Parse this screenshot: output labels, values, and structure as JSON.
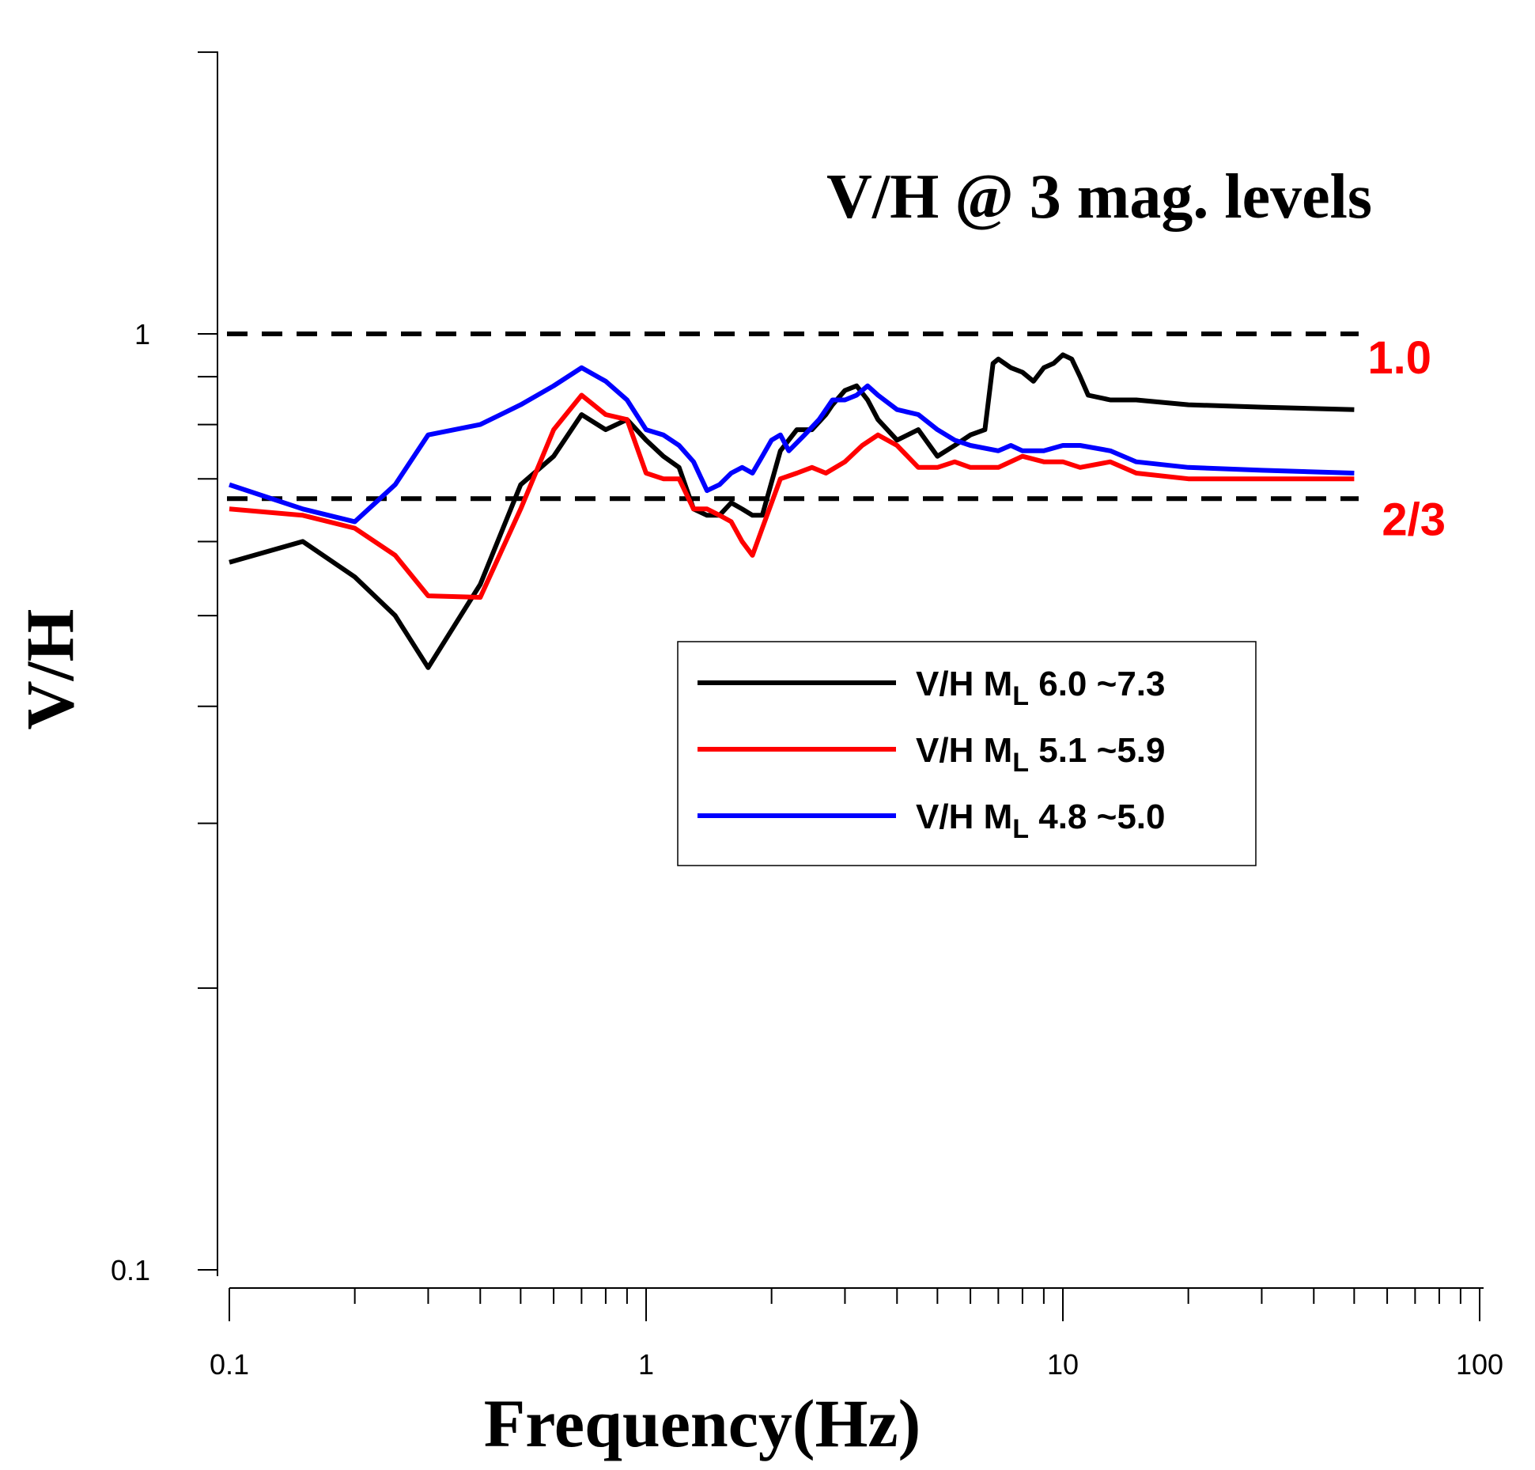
{
  "chart_data": {
    "type": "line",
    "title": "V/H @ 3 mag. levels",
    "xlabel": "Frequency(Hz)",
    "ylabel": "V/H",
    "xscale": "log",
    "yscale": "log",
    "xlim": [
      0.1,
      100
    ],
    "ylim": [
      0.1,
      3
    ],
    "xticks": [
      {
        "value": 0.1,
        "label": "0.1"
      },
      {
        "value": 1,
        "label": "1"
      },
      {
        "value": 10,
        "label": "10"
      },
      {
        "value": 100,
        "label": "100"
      }
    ],
    "yticks": [
      {
        "value": 0.1,
        "label": "0.1"
      },
      {
        "value": 1,
        "label": "1"
      }
    ],
    "legend_position": "center-right",
    "reference_lines": [
      {
        "value": 1.0,
        "label": "1.0",
        "style": "dashed",
        "color": "#000000",
        "label_color": "#ff0000"
      },
      {
        "value": 0.6667,
        "label": "2/3",
        "style": "dashed",
        "color": "#000000",
        "label_color": "#ff0000"
      }
    ],
    "series": [
      {
        "name": "V/H ML 6.0 ~7.3",
        "legend_prefix": "V/H M",
        "legend_sub": "L",
        "legend_suffix": " 6.0 ~7.3",
        "color": "#000000",
        "points": [
          [
            0.1,
            0.57
          ],
          [
            0.15,
            0.6
          ],
          [
            0.2,
            0.55
          ],
          [
            0.25,
            0.5
          ],
          [
            0.3,
            0.44
          ],
          [
            0.4,
            0.54
          ],
          [
            0.5,
            0.69
          ],
          [
            0.6,
            0.74
          ],
          [
            0.7,
            0.82
          ],
          [
            0.8,
            0.79
          ],
          [
            0.9,
            0.81
          ],
          [
            1.0,
            0.77
          ],
          [
            1.1,
            0.74
          ],
          [
            1.2,
            0.72
          ],
          [
            1.3,
            0.65
          ],
          [
            1.4,
            0.64
          ],
          [
            1.5,
            0.64
          ],
          [
            1.6,
            0.66
          ],
          [
            1.7,
            0.65
          ],
          [
            1.8,
            0.64
          ],
          [
            1.9,
            0.64
          ],
          [
            2.1,
            0.75
          ],
          [
            2.3,
            0.79
          ],
          [
            2.5,
            0.79
          ],
          [
            2.7,
            0.82
          ],
          [
            2.8,
            0.84
          ],
          [
            3.0,
            0.87
          ],
          [
            3.2,
            0.88
          ],
          [
            3.4,
            0.85
          ],
          [
            3.6,
            0.81
          ],
          [
            4.0,
            0.77
          ],
          [
            4.5,
            0.79
          ],
          [
            5.0,
            0.74
          ],
          [
            5.5,
            0.76
          ],
          [
            6.0,
            0.78
          ],
          [
            6.5,
            0.79
          ],
          [
            6.8,
            0.93
          ],
          [
            7.0,
            0.94
          ],
          [
            7.5,
            0.92
          ],
          [
            8.0,
            0.91
          ],
          [
            8.5,
            0.89
          ],
          [
            9.0,
            0.92
          ],
          [
            9.5,
            0.93
          ],
          [
            10.0,
            0.95
          ],
          [
            10.5,
            0.94
          ],
          [
            11.0,
            0.9
          ],
          [
            11.5,
            0.86
          ],
          [
            13,
            0.85
          ],
          [
            15,
            0.85
          ],
          [
            20,
            0.84
          ],
          [
            30,
            0.835
          ],
          [
            50,
            0.83
          ]
        ]
      },
      {
        "name": "V/H ML 5.1 ~5.9",
        "legend_prefix": "V/H M",
        "legend_sub": "L",
        "legend_suffix": " 5.1 ~5.9",
        "color": "#ff0000",
        "points": [
          [
            0.1,
            0.65
          ],
          [
            0.15,
            0.64
          ],
          [
            0.2,
            0.62
          ],
          [
            0.25,
            0.58
          ],
          [
            0.3,
            0.525
          ],
          [
            0.4,
            0.523
          ],
          [
            0.5,
            0.65
          ],
          [
            0.6,
            0.79
          ],
          [
            0.7,
            0.86
          ],
          [
            0.8,
            0.82
          ],
          [
            0.9,
            0.81
          ],
          [
            1.0,
            0.71
          ],
          [
            1.1,
            0.7
          ],
          [
            1.2,
            0.7
          ],
          [
            1.3,
            0.65
          ],
          [
            1.4,
            0.65
          ],
          [
            1.5,
            0.64
          ],
          [
            1.6,
            0.63
          ],
          [
            1.7,
            0.6
          ],
          [
            1.8,
            0.58
          ],
          [
            1.9,
            0.62
          ],
          [
            2.1,
            0.7
          ],
          [
            2.3,
            0.71
          ],
          [
            2.5,
            0.72
          ],
          [
            2.7,
            0.71
          ],
          [
            3.0,
            0.73
          ],
          [
            3.3,
            0.76
          ],
          [
            3.6,
            0.78
          ],
          [
            4.0,
            0.76
          ],
          [
            4.5,
            0.72
          ],
          [
            5.0,
            0.72
          ],
          [
            5.5,
            0.73
          ],
          [
            6.0,
            0.72
          ],
          [
            7.0,
            0.72
          ],
          [
            8.0,
            0.74
          ],
          [
            9.0,
            0.73
          ],
          [
            10,
            0.73
          ],
          [
            11,
            0.72
          ],
          [
            13,
            0.73
          ],
          [
            15,
            0.71
          ],
          [
            20,
            0.7
          ],
          [
            30,
            0.7
          ],
          [
            50,
            0.7
          ]
        ]
      },
      {
        "name": "V/H ML 4.8 ~5.0",
        "legend_prefix": "V/H M",
        "legend_sub": "L",
        "legend_suffix": " 4.8 ~5.0",
        "color": "#0000ff",
        "points": [
          [
            0.1,
            0.69
          ],
          [
            0.15,
            0.65
          ],
          [
            0.2,
            0.63
          ],
          [
            0.25,
            0.69
          ],
          [
            0.3,
            0.78
          ],
          [
            0.4,
            0.8
          ],
          [
            0.5,
            0.84
          ],
          [
            0.6,
            0.88
          ],
          [
            0.7,
            0.92
          ],
          [
            0.8,
            0.89
          ],
          [
            0.9,
            0.85
          ],
          [
            1.0,
            0.79
          ],
          [
            1.1,
            0.78
          ],
          [
            1.2,
            0.76
          ],
          [
            1.3,
            0.73
          ],
          [
            1.4,
            0.68
          ],
          [
            1.5,
            0.69
          ],
          [
            1.6,
            0.71
          ],
          [
            1.7,
            0.72
          ],
          [
            1.8,
            0.71
          ],
          [
            1.9,
            0.74
          ],
          [
            2.0,
            0.77
          ],
          [
            2.1,
            0.78
          ],
          [
            2.2,
            0.75
          ],
          [
            2.4,
            0.78
          ],
          [
            2.6,
            0.81
          ],
          [
            2.8,
            0.85
          ],
          [
            3.0,
            0.85
          ],
          [
            3.2,
            0.86
          ],
          [
            3.4,
            0.88
          ],
          [
            3.6,
            0.86
          ],
          [
            4.0,
            0.83
          ],
          [
            4.5,
            0.82
          ],
          [
            5.0,
            0.79
          ],
          [
            5.5,
            0.77
          ],
          [
            6.0,
            0.76
          ],
          [
            7.0,
            0.75
          ],
          [
            7.5,
            0.76
          ],
          [
            8.0,
            0.75
          ],
          [
            9.0,
            0.75
          ],
          [
            10,
            0.76
          ],
          [
            11,
            0.76
          ],
          [
            13,
            0.75
          ],
          [
            15,
            0.73
          ],
          [
            20,
            0.72
          ],
          [
            30,
            0.715
          ],
          [
            50,
            0.71
          ]
        ]
      }
    ]
  }
}
